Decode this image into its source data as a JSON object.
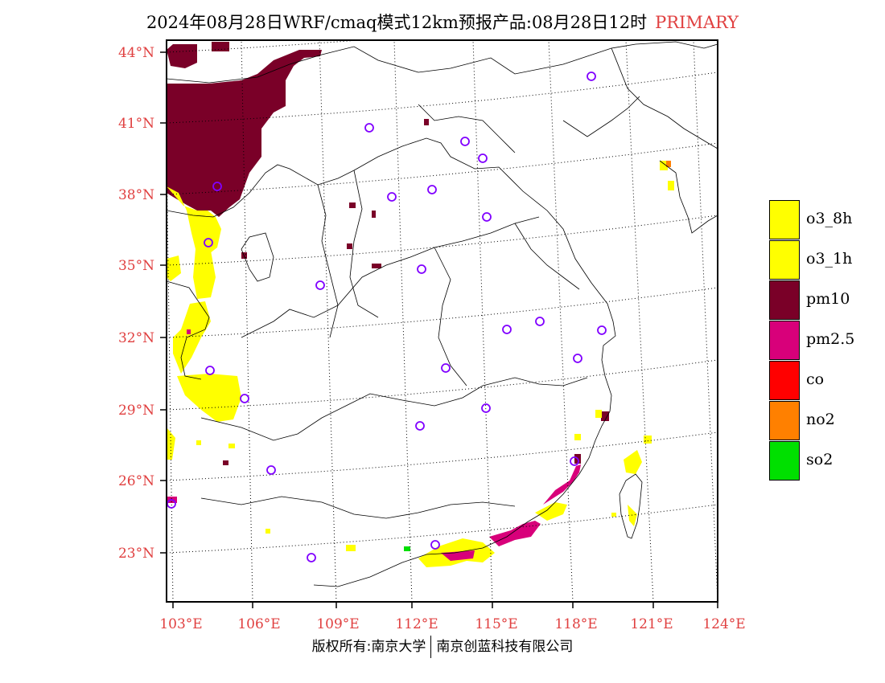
{
  "title": {
    "main": "2024年08月28日WRF/cmaq模式12km预报产品:08月28日12时",
    "tag": "PRIMARY"
  },
  "map": {
    "lat_labels": [
      "44°N",
      "41°N",
      "38°N",
      "35°N",
      "32°N",
      "29°N",
      "26°N",
      "23°N"
    ],
    "lon_labels": [
      "103°E",
      "106°E",
      "109°E",
      "112°E",
      "115°E",
      "118°E",
      "121°E",
      "124°E"
    ],
    "station_marker_color": "#8000ff",
    "grid": "dotted"
  },
  "legend": [
    {
      "label": "o3_8h",
      "color": "#ffff00"
    },
    {
      "label": "o3_1h",
      "color": "#ffff00"
    },
    {
      "label": "pm10",
      "color": "#7a0028"
    },
    {
      "label": "pm2.5",
      "color": "#d8007a"
    },
    {
      "label": "co",
      "color": "#ff0000"
    },
    {
      "label": "no2",
      "color": "#ff8000"
    },
    {
      "label": "so2",
      "color": "#00e000"
    }
  ],
  "footer": {
    "left": "版权所有:南京大学",
    "right": "南京创蓝科技有限公司"
  }
}
